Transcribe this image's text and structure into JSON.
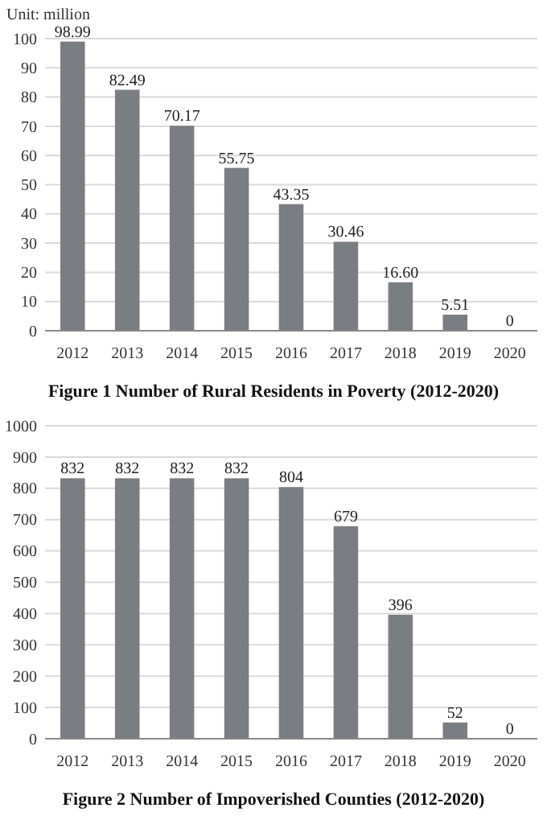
{
  "chart_data": [
    {
      "type": "bar",
      "title": "Figure 1    Number of Rural Residents in Poverty (2012-2020)",
      "ylabel": "Unit: million",
      "categories": [
        "2012",
        "2013",
        "2014",
        "2015",
        "2016",
        "2017",
        "2018",
        "2019",
        "2020"
      ],
      "values": [
        98.99,
        82.49,
        70.17,
        55.75,
        43.35,
        30.46,
        16.6,
        5.51,
        0
      ],
      "value_labels": [
        "98.99",
        "82.49",
        "70.17",
        "55.75",
        "43.35",
        "30.46",
        "16.60",
        "5.51",
        "0"
      ],
      "color": "#7a7d82",
      "ylim": [
        0,
        100
      ],
      "yticks": [
        0,
        10,
        20,
        30,
        40,
        50,
        60,
        70,
        80,
        90,
        100
      ],
      "grid": "y"
    },
    {
      "type": "bar",
      "title": "Figure 2    Number of Impoverished Counties (2012-2020)",
      "categories": [
        "2012",
        "2013",
        "2014",
        "2015",
        "2016",
        "2017",
        "2018",
        "2019",
        "2020"
      ],
      "values": [
        832,
        832,
        832,
        832,
        804,
        679,
        396,
        52,
        0
      ],
      "data_labels": true,
      "color": "#7a7d82",
      "ylim": [
        0,
        1000
      ],
      "yticks": [
        0,
        100,
        200,
        300,
        400,
        500,
        600,
        700,
        800,
        900,
        1000
      ],
      "grid": "y"
    }
  ]
}
